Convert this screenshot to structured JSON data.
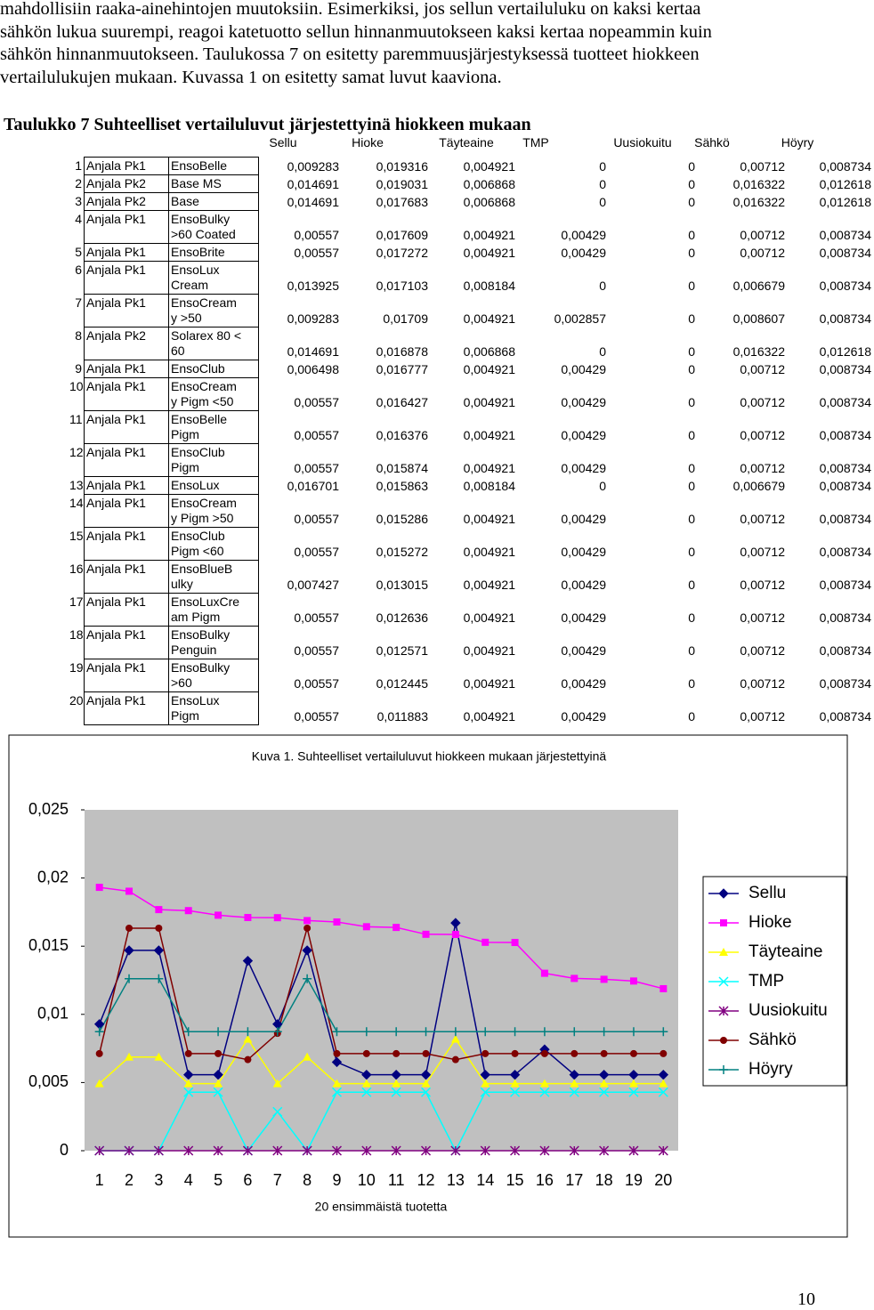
{
  "text": {
    "lines": [
      "mahdollisiin raaka-ainehintojen muutoksiin. Esimerkiksi, jos sellun vertailuluku on kaksi kertaa",
      "sähkön lukua suurempi, reagoi katetuotto sellun hinnanmuutokseen kaksi kertaa nopeammin kuin",
      "sähkön hinnanmuutokseen. Taulukossa 7 on esitetty paremmuusjärjestyksessä tuotteet hiokkeen",
      "vertailulukujen mukaan. Kuvassa 1 on esitetty samat luvut kaaviona."
    ]
  },
  "table": {
    "title": "Taulukko 7 Suhteelliset vertailuluvut järjestettyinä hiokkeen mukaan",
    "columns": [
      "Sellu",
      "Hioke",
      "Täyteaine",
      "TMP",
      "Uusiokuitu",
      "Sähkö",
      "Höyry"
    ],
    "rows": [
      [
        "1",
        "Anjala Pk1",
        "EnsoBelle",
        "0,009283",
        "0,019316",
        "0,004921",
        "0",
        "0",
        "0,00712",
        "0,008734"
      ],
      [
        "2",
        "Anjala Pk2",
        "Base MS",
        "0,014691",
        "0,019031",
        "0,006868",
        "0",
        "0",
        "0,016322",
        "0,012618"
      ],
      [
        "3",
        "Anjala Pk2",
        "Base",
        "0,014691",
        "0,017683",
        "0,006868",
        "0",
        "0",
        "0,016322",
        "0,012618"
      ],
      [
        "4",
        "Anjala Pk1",
        "EnsoBulky\n>60 Coated",
        "0,00557",
        "0,017609",
        "0,004921",
        "0,00429",
        "0",
        "0,00712",
        "0,008734"
      ],
      [
        "5",
        "Anjala Pk1",
        "EnsoBrite",
        "0,00557",
        "0,017272",
        "0,004921",
        "0,00429",
        "0",
        "0,00712",
        "0,008734"
      ],
      [
        "6",
        "Anjala Pk1",
        "EnsoLux\nCream",
        "0,013925",
        "0,017103",
        "0,008184",
        "0",
        "0",
        "0,006679",
        "0,008734"
      ],
      [
        "7",
        "Anjala Pk1",
        "EnsoCream\ny >50",
        "0,009283",
        "0,01709",
        "0,004921",
        "0,002857",
        "0",
        "0,008607",
        "0,008734"
      ],
      [
        "8",
        "Anjala Pk2",
        "Solarex 80 <\n60",
        "0,014691",
        "0,016878",
        "0,006868",
        "0",
        "0",
        "0,016322",
        "0,012618"
      ],
      [
        "9",
        "Anjala Pk1",
        "EnsoClub",
        "0,006498",
        "0,016777",
        "0,004921",
        "0,00429",
        "0",
        "0,00712",
        "0,008734"
      ],
      [
        "10",
        "Anjala Pk1",
        "EnsoCream\ny Pigm <50",
        "0,00557",
        "0,016427",
        "0,004921",
        "0,00429",
        "0",
        "0,00712",
        "0,008734"
      ],
      [
        "11",
        "Anjala Pk1",
        "EnsoBelle\nPigm",
        "0,00557",
        "0,016376",
        "0,004921",
        "0,00429",
        "0",
        "0,00712",
        "0,008734"
      ],
      [
        "12",
        "Anjala Pk1",
        "EnsoClub\nPigm",
        "0,00557",
        "0,015874",
        "0,004921",
        "0,00429",
        "0",
        "0,00712",
        "0,008734"
      ],
      [
        "13",
        "Anjala Pk1",
        "EnsoLux",
        "0,016701",
        "0,015863",
        "0,008184",
        "0",
        "0",
        "0,006679",
        "0,008734"
      ],
      [
        "14",
        "Anjala Pk1",
        "EnsoCream\ny Pigm >50",
        "0,00557",
        "0,015286",
        "0,004921",
        "0,00429",
        "0",
        "0,00712",
        "0,008734"
      ],
      [
        "15",
        "Anjala Pk1",
        "EnsoClub\nPigm <60",
        "0,00557",
        "0,015272",
        "0,004921",
        "0,00429",
        "0",
        "0,00712",
        "0,008734"
      ],
      [
        "16",
        "Anjala Pk1",
        "EnsoBlueB\nulky",
        "0,007427",
        "0,013015",
        "0,004921",
        "0,00429",
        "0",
        "0,00712",
        "0,008734"
      ],
      [
        "17",
        "Anjala Pk1",
        "EnsoLuxCre\nam Pigm",
        "0,00557",
        "0,012636",
        "0,004921",
        "0,00429",
        "0",
        "0,00712",
        "0,008734"
      ],
      [
        "18",
        "Anjala Pk1",
        "EnsoBulky\nPenguin",
        "0,00557",
        "0,012571",
        "0,004921",
        "0,00429",
        "0",
        "0,00712",
        "0,008734"
      ],
      [
        "19",
        "Anjala Pk1",
        "EnsoBulky\n>60",
        "0,00557",
        "0,012445",
        "0,004921",
        "0,00429",
        "0",
        "0,00712",
        "0,008734"
      ],
      [
        "20",
        "Anjala Pk1",
        "EnsoLux\nPigm",
        "0,00557",
        "0,011883",
        "0,004921",
        "0,00429",
        "0",
        "0,00712",
        "0,008734"
      ]
    ]
  },
  "figure_caption": "Kuva 1. Suhteelliset vertailuluvut hiokkeen mukaan järjestettyinä",
  "chart_data": {
    "type": "line",
    "x_label": "20 ensimmäistä tuotetta",
    "categories": [
      "1",
      "2",
      "3",
      "4",
      "5",
      "6",
      "7",
      "8",
      "9",
      "10",
      "11",
      "12",
      "13",
      "14",
      "15",
      "16",
      "17",
      "18",
      "19",
      "20"
    ],
    "ylim": [
      0,
      0.025
    ],
    "yticks": [
      0,
      {
        "value": 0.005,
        "label": "0,005"
      },
      {
        "value": 0.01,
        "label": "0,01"
      },
      {
        "value": 0.015,
        "label": "0,015"
      },
      {
        "value": 0.02,
        "label": "0,02"
      },
      {
        "value": 0.025,
        "label": "0,025"
      }
    ],
    "plot_background": "#c0c0c0",
    "legend": "right",
    "series": [
      {
        "name": "Sellu",
        "color": "#000080",
        "marker": "diamond",
        "values": [
          0.009283,
          0.014691,
          0.014691,
          0.00557,
          0.00557,
          0.013925,
          0.009283,
          0.014691,
          0.006498,
          0.00557,
          0.00557,
          0.00557,
          0.016701,
          0.00557,
          0.00557,
          0.007427,
          0.00557,
          0.00557,
          0.00557,
          0.00557
        ]
      },
      {
        "name": "Hioke",
        "color": "#ff00ff",
        "marker": "square",
        "values": [
          0.019316,
          0.019031,
          0.017683,
          0.017609,
          0.017272,
          0.017103,
          0.01709,
          0.016878,
          0.016777,
          0.016427,
          0.016376,
          0.015874,
          0.015863,
          0.015286,
          0.015272,
          0.013015,
          0.012636,
          0.012571,
          0.012445,
          0.011883
        ]
      },
      {
        "name": "Täyteaine",
        "color": "#ffff00",
        "marker": "triangle",
        "values": [
          0.004921,
          0.006868,
          0.006868,
          0.004921,
          0.004921,
          0.008184,
          0.004921,
          0.006868,
          0.004921,
          0.004921,
          0.004921,
          0.004921,
          0.008184,
          0.004921,
          0.004921,
          0.004921,
          0.004921,
          0.004921,
          0.004921,
          0.004921
        ]
      },
      {
        "name": "TMP",
        "color": "#00ffff",
        "marker": "x",
        "values": [
          0,
          0,
          0,
          0.00429,
          0.00429,
          0,
          0.002857,
          0,
          0.00429,
          0.00429,
          0.00429,
          0.00429,
          0,
          0.00429,
          0.00429,
          0.00429,
          0.00429,
          0.00429,
          0.00429,
          0.00429
        ]
      },
      {
        "name": "Uusiokuitu",
        "color": "#800080",
        "marker": "star",
        "values": [
          0,
          0,
          0,
          0,
          0,
          0,
          0,
          0,
          0,
          0,
          0,
          0,
          0,
          0,
          0,
          0,
          0,
          0,
          0,
          0
        ]
      },
      {
        "name": "Sähkö",
        "color": "#800000",
        "marker": "circle",
        "values": [
          0.00712,
          0.016322,
          0.016322,
          0.00712,
          0.00712,
          0.006679,
          0.008607,
          0.016322,
          0.00712,
          0.00712,
          0.00712,
          0.00712,
          0.006679,
          0.00712,
          0.00712,
          0.00712,
          0.00712,
          0.00712,
          0.00712,
          0.00712
        ]
      },
      {
        "name": "Höyry",
        "color": "#008080",
        "marker": "plus",
        "values": [
          0.008734,
          0.012618,
          0.012618,
          0.008734,
          0.008734,
          0.008734,
          0.008734,
          0.012618,
          0.008734,
          0.008734,
          0.008734,
          0.008734,
          0.008734,
          0.008734,
          0.008734,
          0.008734,
          0.008734,
          0.008734,
          0.008734,
          0.008734
        ]
      }
    ]
  },
  "page_number": "10"
}
